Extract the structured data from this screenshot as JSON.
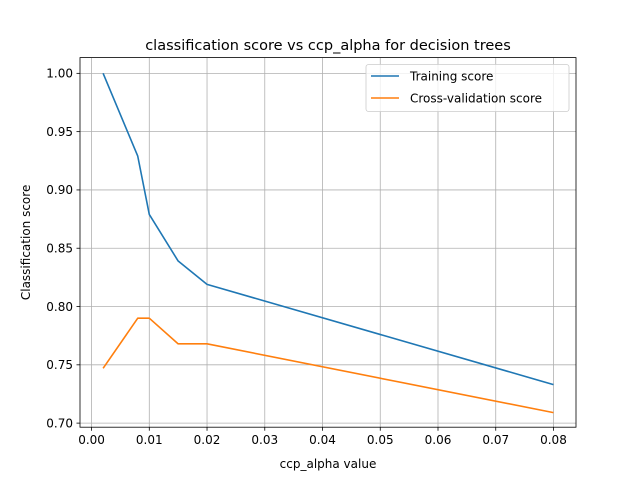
{
  "chart_data": {
    "type": "line",
    "title": "classification score vs ccp_alpha for decision trees",
    "xlabel": "ccp_alpha value",
    "ylabel": "Classification score",
    "xlim": [
      -0.002,
      0.0839
    ],
    "ylim": [
      0.6965,
      1.0135
    ],
    "xticks": [
      0.0,
      0.01,
      0.02,
      0.03,
      0.04,
      0.05,
      0.06,
      0.07,
      0.08
    ],
    "xtick_labels": [
      "0.00",
      "0.01",
      "0.02",
      "0.03",
      "0.04",
      "0.05",
      "0.06",
      "0.07",
      "0.08"
    ],
    "yticks": [
      0.7,
      0.75,
      0.8,
      0.85,
      0.9,
      0.95,
      1.0
    ],
    "ytick_labels": [
      "0.70",
      "0.75",
      "0.80",
      "0.85",
      "0.90",
      "0.95",
      "1.00"
    ],
    "grid": true,
    "legend_position": "top-right",
    "series": [
      {
        "name": "Training score",
        "color": "#1f77b4",
        "x": [
          0.002,
          0.008,
          0.01,
          0.015,
          0.02,
          0.08
        ],
        "y": [
          1.0,
          0.929,
          0.879,
          0.839,
          0.819,
          0.733
        ]
      },
      {
        "name": "Cross-validation score",
        "color": "#ff7f0e",
        "x": [
          0.002,
          0.008,
          0.01,
          0.015,
          0.02,
          0.08
        ],
        "y": [
          0.747,
          0.79,
          0.79,
          0.768,
          0.768,
          0.709
        ]
      }
    ]
  }
}
